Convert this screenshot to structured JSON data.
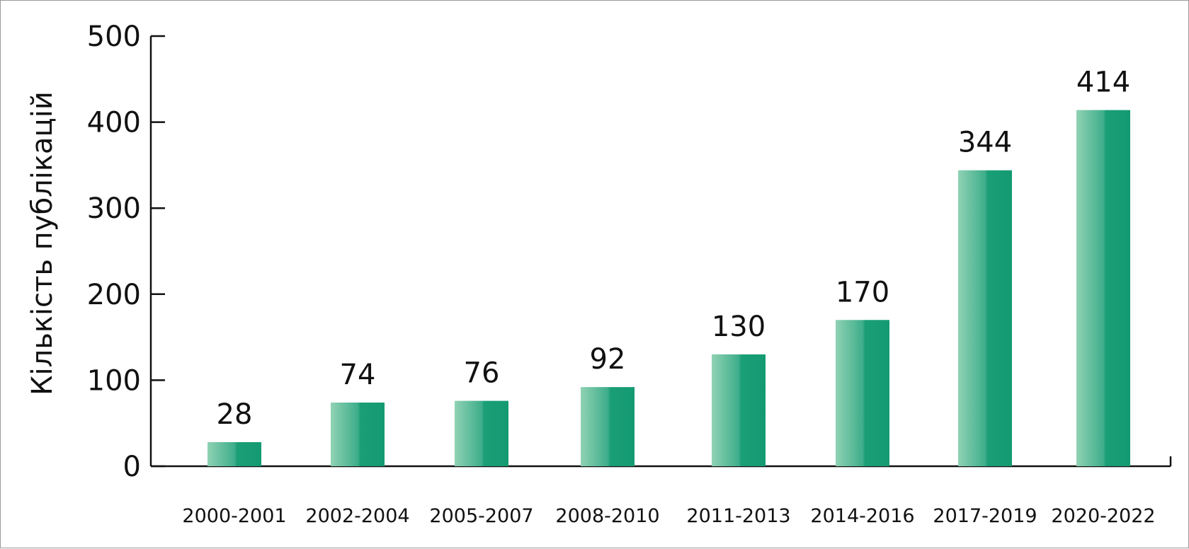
{
  "chart_data": {
    "type": "bar",
    "categories": [
      "2000-2001",
      "2002-2004",
      "2005-2007",
      "2008-2010",
      "2011-2013",
      "2014-2016",
      "2017-2019",
      "2020-2022"
    ],
    "values": [
      28,
      74,
      76,
      92,
      130,
      170,
      344,
      414
    ],
    "ylabel": "Кількість публікацій",
    "xlabel": "",
    "ylim": [
      0,
      500
    ],
    "yticks": [
      0,
      100,
      200,
      300,
      400,
      500
    ],
    "data_labels": true,
    "grid": false,
    "legend": "none",
    "colors": {
      "bar_light": "#8fd2b4",
      "bar_mid": "#3fae8b",
      "bar_dark": "#149a72",
      "axis": "#111111"
    }
  }
}
